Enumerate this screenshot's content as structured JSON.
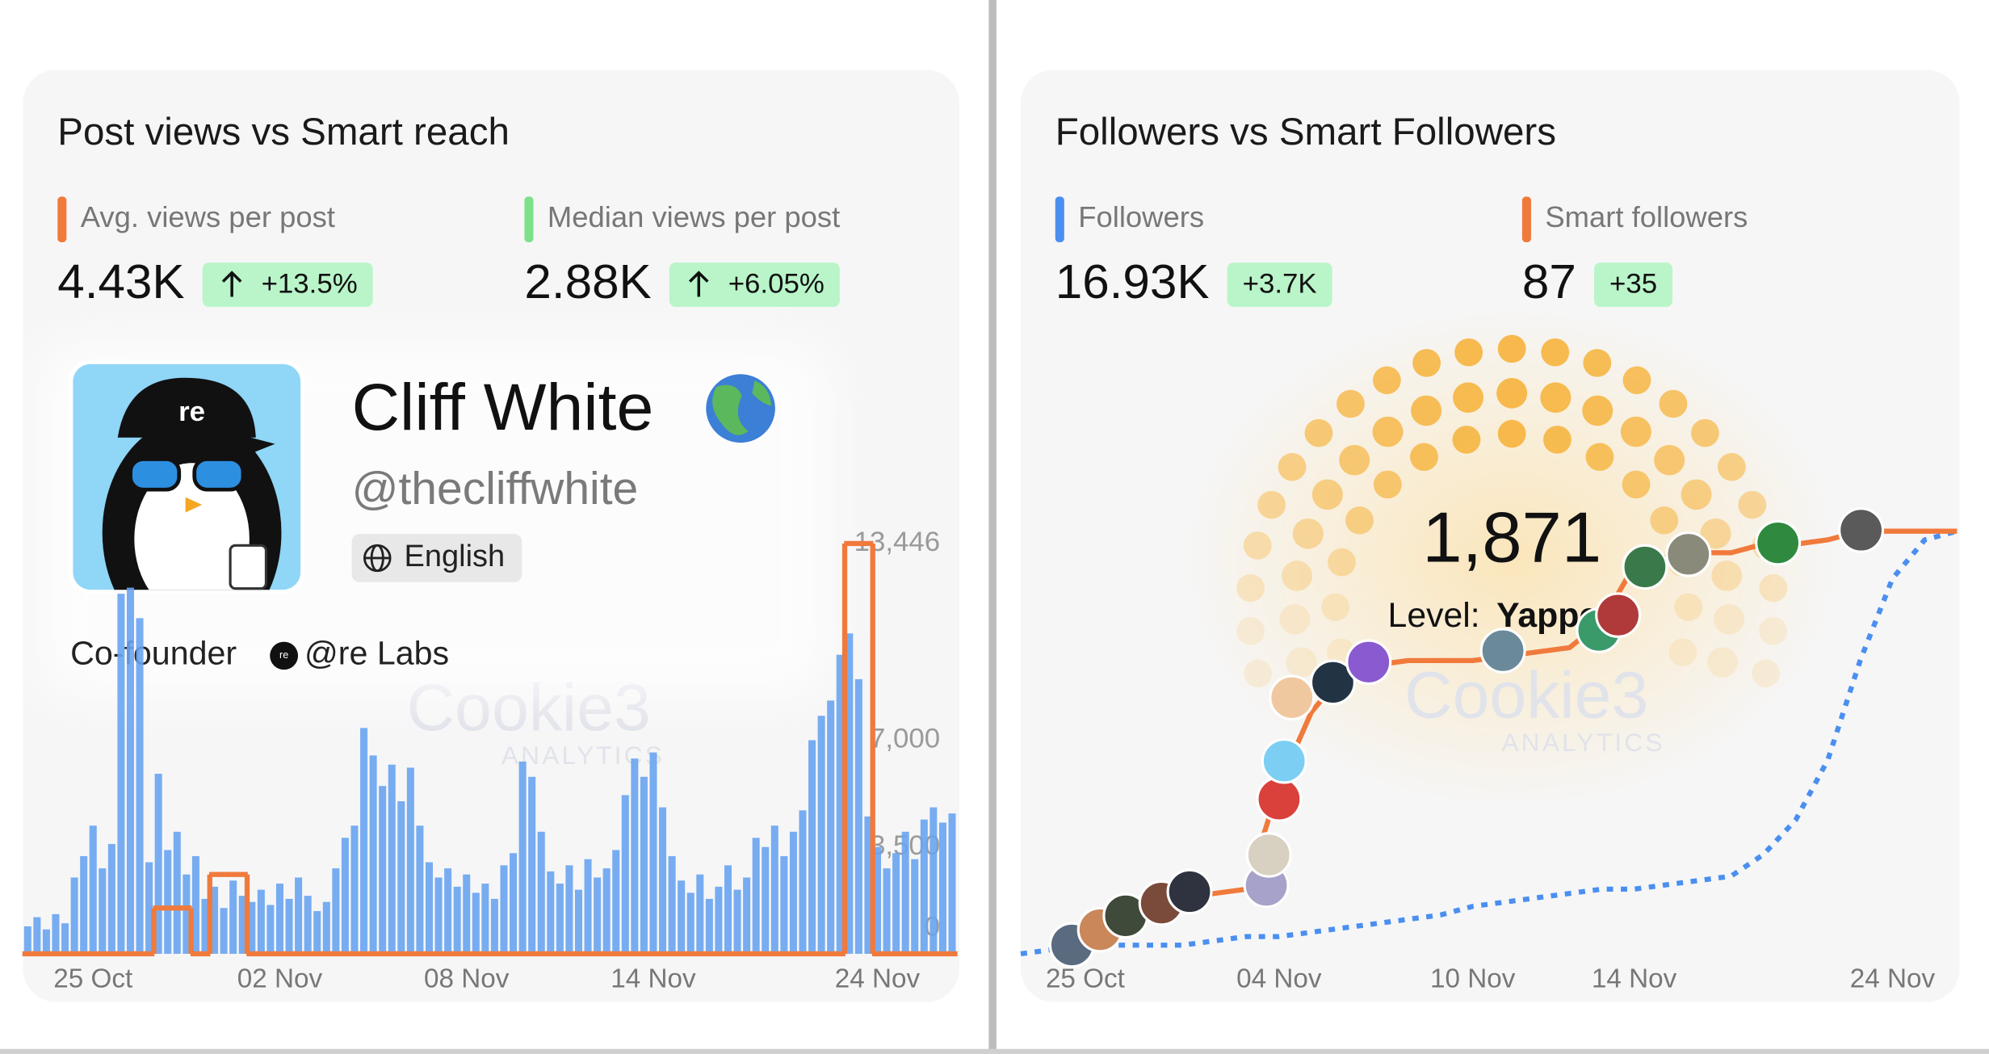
{
  "profile": {
    "name": "Cliff White",
    "handle": "@thecliffwhite",
    "language": "English",
    "bio": "Co-founder",
    "org": "@re Labs",
    "avatar_text": "re"
  },
  "watermark": {
    "name": "Cookie3",
    "sub": "ANALYTICS"
  },
  "chart_data": [
    {
      "type": "bar",
      "title": "Post views vs Smart reach",
      "stats": [
        {
          "label": "Avg. views per post",
          "color": "#f07a3c",
          "value": "4.43K",
          "change": "+13.5%"
        },
        {
          "label": "Median views per post",
          "color": "#7ee08a",
          "value": "2.88K",
          "change": "+6.05%"
        }
      ],
      "categories": [
        null,
        null,
        null,
        null,
        null,
        null,
        null,
        "25 Oct",
        null,
        null,
        null,
        null,
        null,
        null,
        null,
        null,
        null,
        null,
        null,
        null,
        null,
        null,
        null,
        null,
        null,
        null,
        null,
        "02 Nov",
        null,
        null,
        null,
        null,
        null,
        null,
        null,
        null,
        null,
        null,
        null,
        null,
        null,
        null,
        null,
        null,
        null,
        null,
        null,
        "08 Nov",
        null,
        null,
        null,
        null,
        null,
        null,
        null,
        null,
        null,
        null,
        null,
        null,
        null,
        null,
        null,
        null,
        null,
        null,
        null,
        "14 Nov",
        null,
        null,
        null,
        null,
        null,
        null,
        null,
        null,
        null,
        null,
        null,
        null,
        null,
        null,
        null,
        null,
        null,
        null,
        null,
        null,
        null,
        null,
        null,
        "24 Nov",
        null,
        null,
        null,
        null,
        null,
        null,
        null,
        null
      ],
      "series": [
        {
          "color": "#69a4f0",
          "values": [
            900,
            1200,
            800,
            1300,
            1000,
            2500,
            3200,
            4200,
            2800,
            3600,
            11800,
            12000,
            11000,
            3000,
            5900,
            3400,
            4000,
            2600,
            3200,
            1800,
            2200,
            1500,
            2400,
            1900,
            1700,
            2100,
            1600,
            2300,
            1800,
            2500,
            1900,
            1400,
            1700,
            2800,
            3800,
            4200,
            7400,
            6500,
            5500,
            6200,
            5000,
            6100,
            4200,
            3000,
            2500,
            2800,
            2200,
            2600,
            2000,
            2300,
            1800,
            2900,
            3300,
            6300,
            5800,
            4000,
            2700,
            2300,
            2900,
            2100,
            3100,
            2500,
            2800,
            3400,
            5200,
            6400,
            5800,
            6600,
            4800,
            3200,
            2400,
            2000,
            2600,
            1800,
            2200,
            2900,
            2100,
            2500,
            3800,
            3500,
            4200,
            3200,
            4000,
            4700,
            7000,
            7800,
            8300,
            9800,
            10500,
            9000,
            4500,
            3500,
            2800,
            3300,
            4000,
            3100,
            4400,
            4800,
            4300,
            4600
          ]
        },
        {
          "type": "step",
          "color": "#f07a3c",
          "values": [
            0,
            0,
            0,
            0,
            0,
            0,
            0,
            0,
            0,
            0,
            0,
            0,
            0,
            0,
            1500,
            1500,
            1500,
            1500,
            0,
            0,
            2600,
            2600,
            2600,
            2600,
            0,
            0,
            0,
            0,
            0,
            0,
            0,
            0,
            0,
            0,
            0,
            0,
            0,
            0,
            0,
            0,
            0,
            0,
            0,
            0,
            0,
            0,
            0,
            0,
            0,
            0,
            0,
            0,
            0,
            0,
            0,
            0,
            0,
            0,
            0,
            0,
            0,
            0,
            0,
            0,
            0,
            0,
            0,
            0,
            0,
            0,
            0,
            0,
            0,
            0,
            0,
            0,
            0,
            0,
            0,
            0,
            0,
            0,
            0,
            0,
            0,
            0,
            0,
            0,
            13446,
            13446,
            13446,
            0,
            0,
            0,
            0,
            0,
            0,
            0,
            0,
            0
          ]
        }
      ],
      "ylim": [
        0,
        13800
      ],
      "yticks": [
        0,
        {
          "value": 3500,
          "label": "3,500"
        },
        {
          "value": 7000,
          "label": "7,000"
        },
        {
          "value": 13446,
          "label": "13,446"
        }
      ]
    },
    {
      "type": "line",
      "title": "Followers vs Smart Followers",
      "stats": [
        {
          "label": "Followers",
          "color": "#4a8ff0",
          "value": "16.93K",
          "change": "+3.7K"
        },
        {
          "label": "Smart followers",
          "color": "#f07a3c",
          "value": "87",
          "change": "+35"
        }
      ],
      "categories": [
        null,
        null,
        "25 Oct",
        null,
        null,
        null,
        null,
        null,
        "04 Nov",
        null,
        null,
        null,
        null,
        null,
        "10 Nov",
        null,
        null,
        null,
        null,
        "14 Nov",
        null,
        null,
        null,
        null,
        null,
        null,
        null,
        "24 Nov",
        null,
        null
      ],
      "series": [
        {
          "color": "#4a8ff0",
          "dashed": true,
          "values": [
            0,
            1,
            1,
            2,
            2,
            2,
            3,
            4,
            4,
            5,
            6,
            7,
            8,
            9,
            11,
            12,
            13,
            14,
            15,
            15,
            16,
            17,
            18,
            23,
            31,
            45,
            68,
            87,
            96,
            98
          ]
        },
        {
          "color": "#f07a3c",
          "values": [
            null,
            null,
            2,
            8,
            9,
            13,
            14,
            15,
            39,
            56,
            65,
            67,
            68,
            68,
            68,
            69,
            70,
            71,
            77,
            90,
            92,
            93,
            93,
            95,
            95,
            96,
            98,
            98,
            98,
            98
          ]
        }
      ],
      "ylim": [
        0,
        100
      ],
      "gauge": {
        "value": "1,871",
        "level_label": "Level:",
        "level": "Yapper"
      }
    }
  ]
}
